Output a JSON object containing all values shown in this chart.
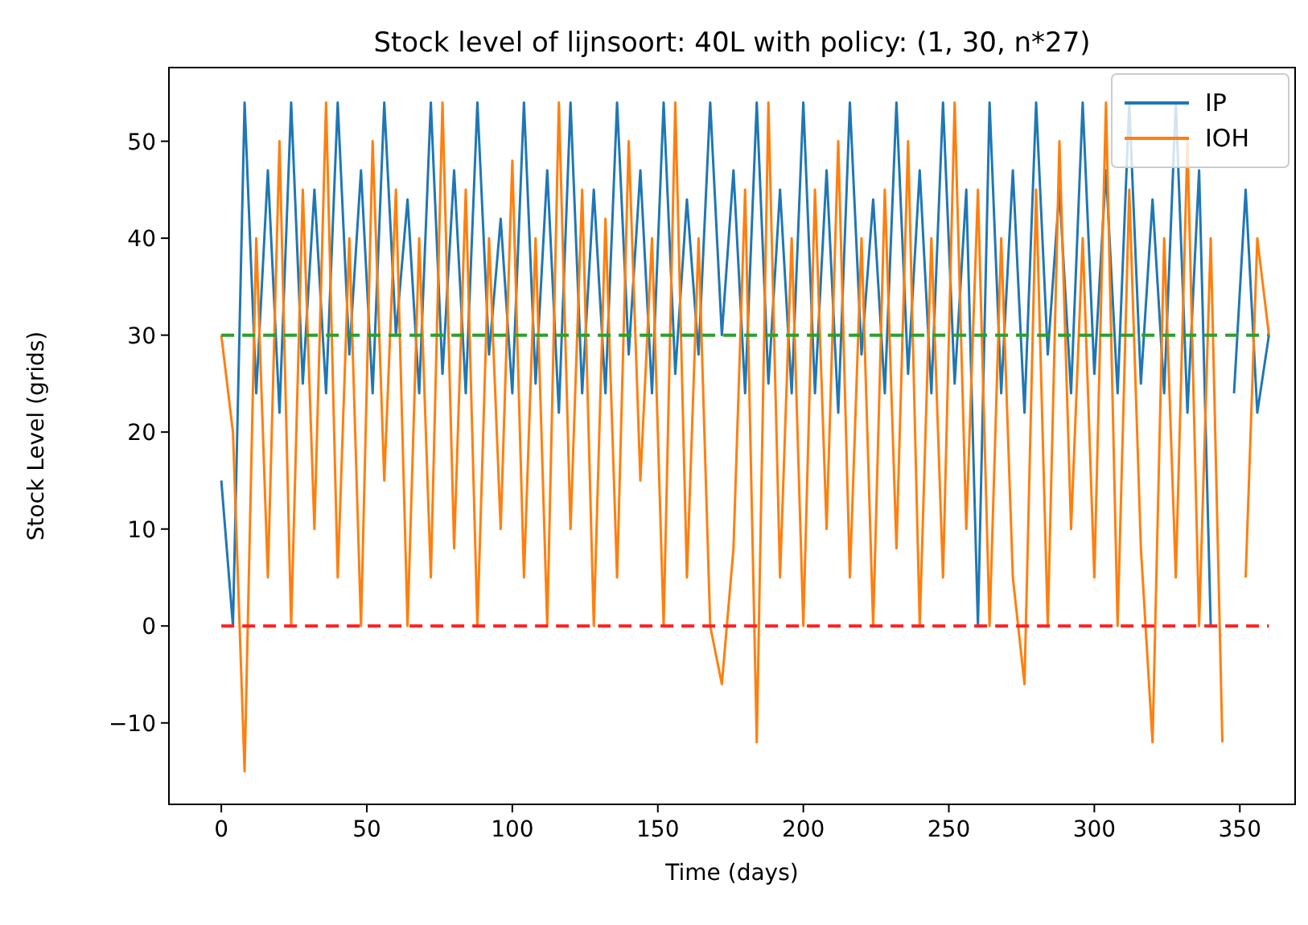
{
  "chart_data": {
    "type": "line",
    "title": "Stock level of lijnsoort: 40L with policy: (1, 30, n*27)",
    "xlabel": "Time (days)",
    "ylabel": "Stock Level (grids)",
    "x": [
      0,
      4,
      8,
      12,
      16,
      20,
      24,
      28,
      32,
      36,
      40,
      44,
      48,
      52,
      56,
      60,
      64,
      68,
      72,
      76,
      80,
      84,
      88,
      92,
      96,
      100,
      104,
      108,
      112,
      116,
      120,
      124,
      128,
      132,
      136,
      140,
      144,
      148,
      152,
      156,
      160,
      164,
      168,
      172,
      176,
      180,
      184,
      188,
      192,
      196,
      200,
      204,
      208,
      212,
      216,
      220,
      224,
      228,
      232,
      236,
      240,
      244,
      248,
      252,
      256,
      260,
      264,
      268,
      272,
      276,
      280,
      284,
      288,
      292,
      296,
      300,
      304,
      308,
      312,
      316,
      320,
      324,
      328,
      332,
      336,
      340,
      344,
      348,
      352,
      356,
      360
    ],
    "series": [
      {
        "name": "IP",
        "color": "#1f77b4",
        "values": [
          15,
          0,
          54,
          24,
          47,
          22,
          54,
          25,
          45,
          24,
          54,
          28,
          47,
          24,
          54,
          30,
          44,
          24,
          54,
          26,
          47,
          24,
          54,
          28,
          42,
          24,
          54,
          25,
          47,
          22,
          54,
          24,
          45,
          24,
          54,
          28,
          47,
          24,
          54,
          26,
          44,
          28,
          54,
          30,
          47,
          24,
          54,
          25,
          45,
          24,
          54,
          24,
          47,
          22,
          54,
          28,
          44,
          24,
          54,
          26,
          47,
          24,
          54,
          25,
          45,
          0,
          54,
          24,
          47,
          22,
          54,
          28,
          45,
          24,
          54,
          26,
          47,
          24,
          54,
          25,
          44,
          24,
          54,
          22,
          47,
          0,
          null,
          24,
          45,
          22,
          30
        ]
      },
      {
        "name": "IOH",
        "color": "#ff7f0e",
        "values": [
          30,
          20,
          -15,
          40,
          5,
          50,
          0,
          45,
          10,
          54,
          5,
          40,
          0,
          50,
          15,
          45,
          0,
          40,
          5,
          54,
          8,
          45,
          0,
          40,
          10,
          48,
          5,
          40,
          0,
          54,
          10,
          45,
          0,
          42,
          5,
          50,
          15,
          40,
          0,
          54,
          5,
          40,
          0,
          -6,
          8,
          45,
          -12,
          54,
          5,
          40,
          0,
          45,
          10,
          50,
          5,
          40,
          0,
          45,
          8,
          50,
          0,
          40,
          5,
          54,
          10,
          45,
          0,
          40,
          5,
          -6,
          45,
          0,
          50,
          10,
          40,
          5,
          54,
          0,
          45,
          8,
          -12,
          40,
          5,
          50,
          0,
          40,
          -12,
          null,
          5,
          40,
          30
        ]
      }
    ],
    "xlim": [
      -18,
      369
    ],
    "xticks": [
      0,
      50,
      100,
      150,
      200,
      250,
      300,
      350
    ],
    "ylim": [
      -18.4,
      57.6
    ],
    "yticks": [
      -10,
      0,
      10,
      20,
      30,
      40,
      50
    ],
    "ref_lines": [
      {
        "axis": "y",
        "value": 30,
        "color": "#2ca02c",
        "line_style": "dashed"
      },
      {
        "axis": "y",
        "value": 0,
        "color": "#ff2020",
        "line_style": "dashed"
      }
    ],
    "legend": "top right",
    "grid": false
  }
}
